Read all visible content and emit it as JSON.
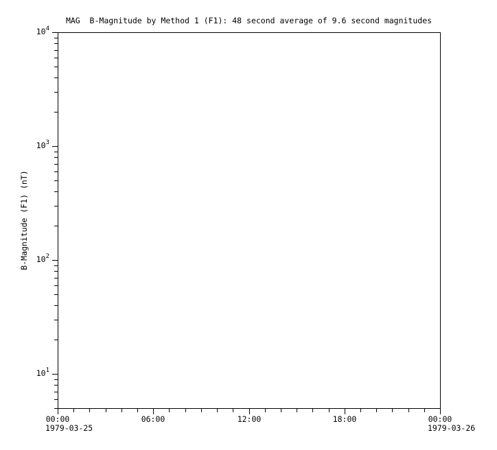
{
  "colors": {
    "background": "#ffffff",
    "axis": "#000000",
    "text": "#000000"
  },
  "chart_data": {
    "type": "line",
    "title": "MAG  B-Magnitude by Method 1 (F1): 48 second average of 9.6 second magnitudes",
    "xlabel": "",
    "ylabel": "B-Magnitude (F1) (nT)",
    "yscale": "log",
    "ylim": [
      5,
      10000
    ],
    "xlim": [
      "1979-03-25 00:00",
      "1979-03-26 00:00"
    ],
    "grid": false,
    "legend": false,
    "series": [],
    "x_axis": {
      "span_hours": 24,
      "major_ticks": [
        {
          "hours": 0,
          "label": "00:00",
          "date_label": "1979-03-25"
        },
        {
          "hours": 6,
          "label": "06:00"
        },
        {
          "hours": 12,
          "label": "12:00"
        },
        {
          "hours": 18,
          "label": "18:00"
        },
        {
          "hours": 24,
          "label": "00:00",
          "date_label": "1979-03-26"
        }
      ],
      "minor_tick_hours": [
        1,
        2,
        3,
        4,
        5,
        7,
        8,
        9,
        10,
        11,
        13,
        14,
        15,
        16,
        17,
        19,
        20,
        21,
        22,
        23
      ]
    },
    "y_axis": {
      "major_ticks": [
        {
          "value": 10,
          "base": "10",
          "exponent": "1"
        },
        {
          "value": 100,
          "base": "10",
          "exponent": "2"
        },
        {
          "value": 1000,
          "base": "10",
          "exponent": "3"
        },
        {
          "value": 10000,
          "base": "10",
          "exponent": "4"
        }
      ],
      "minor_tick_values": [
        5,
        6,
        7,
        8,
        9,
        20,
        30,
        40,
        50,
        60,
        70,
        80,
        90,
        200,
        300,
        400,
        500,
        600,
        700,
        800,
        900,
        2000,
        3000,
        4000,
        5000,
        6000,
        7000,
        8000,
        9000
      ]
    }
  }
}
